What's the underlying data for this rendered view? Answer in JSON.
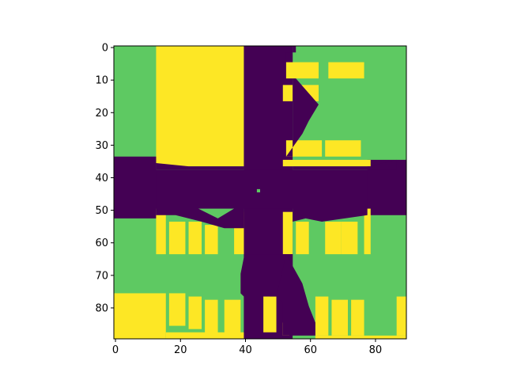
{
  "chart_data": {
    "type": "heatmap",
    "title": "",
    "xlabel": "",
    "ylabel": "",
    "grid": false,
    "y_axis_inverted": true,
    "grid_shape": [
      90,
      90
    ],
    "xlim": [
      -0.5,
      89.5
    ],
    "ylim": [
      89.5,
      -0.5
    ],
    "xticks": [
      0,
      20,
      40,
      60,
      80
    ],
    "yticks": [
      0,
      10,
      20,
      30,
      40,
      50,
      60,
      70,
      80
    ],
    "xtick_labels": [
      "0",
      "20",
      "40",
      "60",
      "80"
    ],
    "ytick_labels": [
      "0",
      "10",
      "20",
      "30",
      "40",
      "50",
      "60",
      "70",
      "80"
    ],
    "colormap": "viridis",
    "classes": [
      {
        "value": 0,
        "color": "#440154"
      },
      {
        "value": 1,
        "color": "#5ec962"
      },
      {
        "value": 2,
        "color": "#fde725"
      }
    ],
    "background_value": 1,
    "regions": [
      {
        "value": 2,
        "x": [
          12.5,
          39.5
        ],
        "y": [
          -0.5,
          36.5
        ]
      },
      {
        "value": 0,
        "x": [
          39.5,
          54.5
        ],
        "y": [
          -0.5,
          89.5
        ]
      },
      {
        "value": 0,
        "x": [
          54.5,
          55.5
        ],
        "y": [
          -0.5,
          1.5
        ]
      },
      {
        "value": 0,
        "x": [
          54.5,
          52.5
        ],
        "y": [
          1.5,
          8.5
        ]
      },
      {
        "value": 0,
        "x": [
          -0.5,
          89.5
        ],
        "y": [
          37.5,
          49.5
        ]
      },
      {
        "value": 0,
        "x": [
          -0.5,
          12.5
        ],
        "y": [
          33.5,
          52.5
        ]
      },
      {
        "value": 0,
        "x": [
          77.5,
          89.5
        ],
        "y": [
          34.5,
          51.5
        ]
      },
      {
        "value": 2,
        "x": [
          52.5,
          62.5
        ],
        "y": [
          4.5,
          9.5
        ]
      },
      {
        "value": 2,
        "x": [
          65.5,
          76.5
        ],
        "y": [
          4.5,
          9.5
        ]
      },
      {
        "value": 2,
        "x": [
          51.5,
          62.5
        ],
        "y": [
          11.5,
          16.5
        ]
      },
      {
        "value": 2,
        "x": [
          52.5,
          63.5
        ],
        "y": [
          28.5,
          33.5
        ]
      },
      {
        "value": 2,
        "x": [
          64.5,
          75.5
        ],
        "y": [
          28.5,
          33.5
        ]
      },
      {
        "value": 2,
        "x": [
          51.5,
          78.5
        ],
        "y": [
          34.5,
          36.5
        ]
      },
      {
        "value": 2,
        "x": [
          12.5,
          15.5
        ],
        "y": [
          49.5,
          63.5
        ]
      },
      {
        "value": 2,
        "x": [
          16.5,
          21.5
        ],
        "y": [
          53.5,
          63.5
        ]
      },
      {
        "value": 2,
        "x": [
          22.5,
          26.5
        ],
        "y": [
          53.5,
          63.5
        ]
      },
      {
        "value": 2,
        "x": [
          27.5,
          31.5
        ],
        "y": [
          54.5,
          63.5
        ]
      },
      {
        "value": 2,
        "x": [
          36.5,
          39.5
        ],
        "y": [
          50.5,
          63.5
        ]
      },
      {
        "value": 2,
        "x": [
          51.5,
          54.5
        ],
        "y": [
          50.5,
          63.5
        ]
      },
      {
        "value": 2,
        "x": [
          55.5,
          59.5
        ],
        "y": [
          53.5,
          63.5
        ]
      },
      {
        "value": 2,
        "x": [
          64.5,
          69.5
        ],
        "y": [
          53.5,
          63.5
        ]
      },
      {
        "value": 2,
        "x": [
          69.5,
          74.5
        ],
        "y": [
          53.5,
          63.5
        ]
      },
      {
        "value": 2,
        "x": [
          76.5,
          78.5
        ],
        "y": [
          49.5,
          63.5
        ]
      },
      {
        "value": 2,
        "x": [
          -0.5,
          15.5
        ],
        "y": [
          75.5,
          89.5
        ]
      },
      {
        "value": 2,
        "x": [
          15.5,
          39.5
        ],
        "y": [
          87.5,
          89.5
        ]
      },
      {
        "value": 2,
        "x": [
          16.5,
          21.5
        ],
        "y": [
          75.5,
          85.5
        ]
      },
      {
        "value": 2,
        "x": [
          22.5,
          26.5
        ],
        "y": [
          76.5,
          86.5
        ]
      },
      {
        "value": 2,
        "x": [
          27.5,
          31.5
        ],
        "y": [
          77.5,
          88.5
        ]
      },
      {
        "value": 2,
        "x": [
          33.5,
          38.5
        ],
        "y": [
          77.5,
          88.5
        ]
      },
      {
        "value": 2,
        "x": [
          45.5,
          49.5
        ],
        "y": [
          76.5,
          87.5
        ]
      },
      {
        "value": 2,
        "x": [
          51.5,
          53.5
        ],
        "y": [
          84.5,
          88.5
        ]
      },
      {
        "value": 2,
        "x": [
          61.5,
          65.5
        ],
        "y": [
          76.5,
          88.5
        ]
      },
      {
        "value": 2,
        "x": [
          66.5,
          71.5
        ],
        "y": [
          77.5,
          88.5
        ]
      },
      {
        "value": 2,
        "x": [
          72.5,
          76.5
        ],
        "y": [
          77.5,
          88.5
        ]
      },
      {
        "value": 2,
        "x": [
          86.5,
          89.5
        ],
        "y": [
          76.5,
          88.5
        ]
      },
      {
        "value": 2,
        "x": [
          61.5,
          89.5
        ],
        "y": [
          88.5,
          89.5
        ]
      },
      {
        "value": 0,
        "x": [
          47.5,
          54.5
        ],
        "y": [
          63.5,
          76.5
        ]
      },
      {
        "value": 1,
        "x": [
          43.5,
          44.5
        ],
        "y": [
          43.5,
          44.5
        ]
      }
    ],
    "polygons": [
      {
        "value": 0,
        "points": [
          [
            55.5,
            9.5
          ],
          [
            62.5,
            17.5
          ],
          [
            59.5,
            22.5
          ],
          [
            57.5,
            26.5
          ],
          [
            52.5,
            33.5
          ],
          [
            54.5,
            33.5
          ],
          [
            54.5,
            9.5
          ]
        ]
      },
      {
        "value": 0,
        "points": [
          [
            12.5,
            49.5
          ],
          [
            25.5,
            49.5
          ],
          [
            31.5,
            52.5
          ],
          [
            36.5,
            49.5
          ],
          [
            39.5,
            49.5
          ],
          [
            39.5,
            55.5
          ],
          [
            33.5,
            55.5
          ],
          [
            26.5,
            53.5
          ],
          [
            18.5,
            51.5
          ],
          [
            12.5,
            51.5
          ]
        ]
      },
      {
        "value": 0,
        "points": [
          [
            54.5,
            49.5
          ],
          [
            77.5,
            49.5
          ],
          [
            77.5,
            51.5
          ],
          [
            70.5,
            52.5
          ],
          [
            63.5,
            53.5
          ],
          [
            58.5,
            52.5
          ],
          [
            54.5,
            53.5
          ]
        ]
      },
      {
        "value": 0,
        "points": [
          [
            12.5,
            37.5
          ],
          [
            12.5,
            35.5
          ],
          [
            22.5,
            36.5
          ],
          [
            39.5,
            36.5
          ],
          [
            39.5,
            37.5
          ]
        ]
      },
      {
        "value": 0,
        "points": [
          [
            54.5,
            36.5
          ],
          [
            78.5,
            36.5
          ],
          [
            86.5,
            34.5
          ],
          [
            86.5,
            37.5
          ],
          [
            54.5,
            37.5
          ]
        ]
      },
      {
        "value": 0,
        "points": [
          [
            39.5,
            64.5
          ],
          [
            38.5,
            69.5
          ],
          [
            38.5,
            75.5
          ],
          [
            39.5,
            76.5
          ],
          [
            39.5,
            89.5
          ],
          [
            44.5,
            89.5
          ],
          [
            44.5,
            76.5
          ],
          [
            54.5,
            76.5
          ],
          [
            54.5,
            63.5
          ],
          [
            39.5,
            63.5
          ]
        ]
      },
      {
        "value": 0,
        "points": [
          [
            52.5,
            63.5
          ],
          [
            57.5,
            72.5
          ],
          [
            59.5,
            79.5
          ],
          [
            61.5,
            84.5
          ],
          [
            61.5,
            88.5
          ],
          [
            51.5,
            88.5
          ],
          [
            51.5,
            78.5
          ],
          [
            49.5,
            76.5
          ],
          [
            52.5,
            63.5
          ]
        ]
      }
    ]
  }
}
